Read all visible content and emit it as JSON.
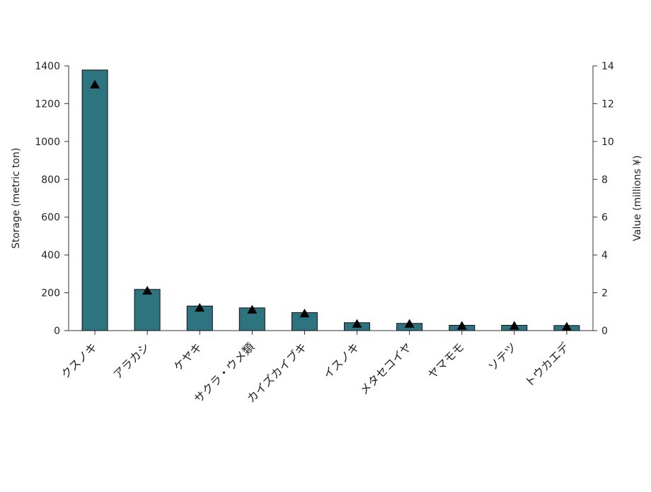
{
  "chart_data": {
    "type": "bar",
    "title": "",
    "categories": [
      "クスノキ",
      "アラカシ",
      "ケヤキ",
      "サクラ・ウメ類",
      "カイズカイブキ",
      "イスノキ",
      "メタセコイヤ",
      "ヤマモモ",
      "ソテツ",
      "トウカエデ"
    ],
    "series": [
      {
        "name": "",
        "kind": "bar",
        "axis": "left",
        "color": "#2e7480",
        "values": [
          1378,
          218,
          130,
          120,
          95,
          42,
          38,
          28,
          28,
          27
        ]
      },
      {
        "name": "",
        "kind": "marker",
        "marker": "triangle",
        "axis": "right",
        "color": "#000000",
        "values": [
          13.0,
          2.1,
          1.2,
          1.1,
          0.9,
          0.35,
          0.35,
          0.25,
          0.25,
          0.2
        ]
      }
    ],
    "y_left": {
      "label": "Storage (metric ton)",
      "min": 0,
      "max": 1400,
      "ticks": [
        0,
        200,
        400,
        600,
        800,
        1000,
        1200,
        1400
      ],
      "tick_labels": [
        "0",
        "200",
        "400",
        "600",
        "800",
        "1000",
        "1200",
        "1400"
      ]
    },
    "y_right": {
      "label": "Value (millions ¥)",
      "min": 0,
      "max": 14,
      "ticks": [
        0,
        2,
        4,
        6,
        8,
        10,
        12,
        14
      ],
      "tick_labels": [
        "0",
        "2",
        "4",
        "6",
        "8",
        "10",
        "12",
        "14"
      ]
    },
    "grid": false,
    "legend": "none"
  }
}
